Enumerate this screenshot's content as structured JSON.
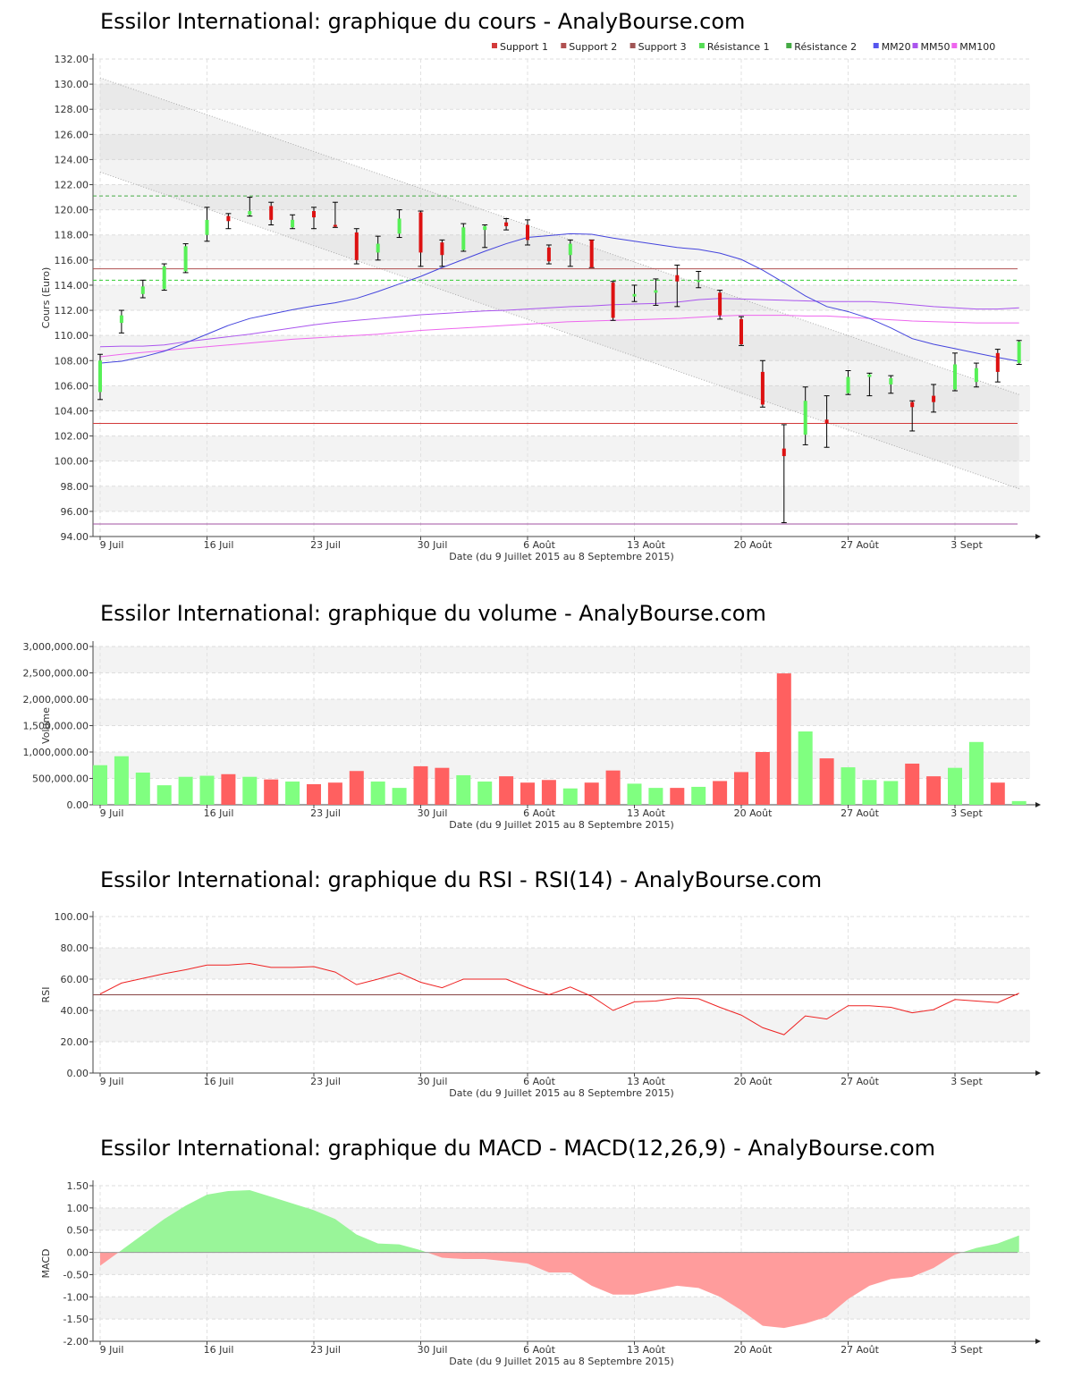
{
  "colors": {
    "up": "#57f057",
    "down": "#dd1111",
    "vol_up": "#80ff80",
    "vol_down": "#ff6060",
    "support1": "#d33a3a",
    "support2": "#b05050",
    "support3": "#a050a0",
    "resistance1": "#33cc33",
    "resistance2": "#44aa44",
    "mm20": "#4444dd",
    "mm50": "#aa55ee",
    "mm100": "#ee66ee",
    "rsi_line": "#ee2222",
    "macd_pos": "#99f599",
    "macd_neg": "#ff9c9c"
  },
  "xaxis": {
    "ticks": [
      {
        "i": 0,
        "label": "9 Juil"
      },
      {
        "i": 5,
        "label": "16 Juil"
      },
      {
        "i": 10,
        "label": "23 Juil"
      },
      {
        "i": 15,
        "label": "30 Juil"
      },
      {
        "i": 20,
        "label": "6 Août"
      },
      {
        "i": 25,
        "label": "13 Août"
      },
      {
        "i": 30,
        "label": "20 Août"
      },
      {
        "i": 35,
        "label": "27 Août"
      },
      {
        "i": 40,
        "label": "3 Sept"
      }
    ],
    "label": "Date (du 9 Juillet 2015 au 8 Septembre 2015)"
  },
  "charts": {
    "price": {
      "title": "Essilor International: graphique du cours - AnalyBourse.com",
      "ylabel": "Cours (Euro)"
    },
    "volume": {
      "title": "Essilor International: graphique du volume - AnalyBourse.com",
      "ylabel": "Volume"
    },
    "rsi": {
      "title": "Essilor International: graphique du RSI - RSI(14) - AnalyBourse.com",
      "ylabel": "RSI"
    },
    "macd": {
      "title": "Essilor International: graphique du MACD - MACD(12,26,9) - AnalyBourse.com",
      "ylabel": "MACD"
    }
  },
  "legend": [
    {
      "label": "Support 1",
      "color": "#d33a3a"
    },
    {
      "label": "Support 2",
      "color": "#b05050"
    },
    {
      "label": "Support 3",
      "color": "#a05555"
    },
    {
      "label": "Résistance 1",
      "color": "#55dd55"
    },
    {
      "label": "Résistance 2",
      "color": "#44aa44"
    },
    {
      "label": "MM20",
      "color": "#5555ee"
    },
    {
      "label": "MM50",
      "color": "#aa55ee"
    },
    {
      "label": "MM100",
      "color": "#ee66ee"
    }
  ],
  "chart_data": [
    {
      "type": "candlestick",
      "title": "Essilor International: graphique du cours - AnalyBourse.com",
      "xlabel": "Date (du 9 Juillet 2015 au 8 Septembre 2015)",
      "ylabel": "Cours (Euro)",
      "ylim": [
        94,
        132
      ],
      "yticks": [
        "94.00",
        "96.00",
        "98.00",
        "100.00",
        "102.00",
        "104.00",
        "106.00",
        "108.00",
        "110.00",
        "112.00",
        "114.00",
        "116.00",
        "118.00",
        "120.00",
        "122.00",
        "124.00",
        "126.00",
        "128.00",
        "130.00",
        "132.00"
      ],
      "candles": [
        {
          "o": 105.5,
          "h": 108.5,
          "l": 104.9,
          "c": 108.0
        },
        {
          "o": 111.0,
          "h": 112.0,
          "l": 110.2,
          "c": 111.6
        },
        {
          "o": 113.3,
          "h": 114.4,
          "l": 113.0,
          "c": 113.9
        },
        {
          "o": 113.7,
          "h": 115.7,
          "l": 113.6,
          "c": 115.5
        },
        {
          "o": 115.1,
          "h": 117.3,
          "l": 115.0,
          "c": 117.1
        },
        {
          "o": 118.0,
          "h": 120.2,
          "l": 117.5,
          "c": 119.2
        },
        {
          "o": 119.5,
          "h": 119.7,
          "l": 118.5,
          "c": 119.1
        },
        {
          "o": 119.6,
          "h": 121.0,
          "l": 119.5,
          "c": 119.9
        },
        {
          "o": 120.3,
          "h": 120.6,
          "l": 118.8,
          "c": 119.2
        },
        {
          "o": 118.6,
          "h": 119.6,
          "l": 118.5,
          "c": 119.2
        },
        {
          "o": 119.9,
          "h": 120.2,
          "l": 118.5,
          "c": 119.4
        },
        {
          "o": 118.8,
          "h": 120.6,
          "l": 118.6,
          "c": 118.7
        },
        {
          "o": 118.2,
          "h": 118.5,
          "l": 115.7,
          "c": 116.0
        },
        {
          "o": 116.6,
          "h": 117.9,
          "l": 116.0,
          "c": 117.3
        },
        {
          "o": 118.1,
          "h": 120.0,
          "l": 117.8,
          "c": 119.3
        },
        {
          "o": 119.8,
          "h": 119.9,
          "l": 115.5,
          "c": 116.6
        },
        {
          "o": 117.4,
          "h": 117.6,
          "l": 115.5,
          "c": 116.4
        },
        {
          "o": 116.8,
          "h": 118.9,
          "l": 116.7,
          "c": 118.6
        },
        {
          "o": 118.4,
          "h": 118.8,
          "l": 117.0,
          "c": 118.7
        },
        {
          "o": 119.0,
          "h": 119.3,
          "l": 118.4,
          "c": 118.7
        },
        {
          "o": 118.8,
          "h": 119.2,
          "l": 117.2,
          "c": 117.6
        },
        {
          "o": 117.0,
          "h": 117.2,
          "l": 115.7,
          "c": 115.9
        },
        {
          "o": 116.4,
          "h": 117.6,
          "l": 115.5,
          "c": 117.3
        },
        {
          "o": 117.6,
          "h": 117.6,
          "l": 115.4,
          "c": 115.4
        },
        {
          "o": 114.2,
          "h": 114.3,
          "l": 111.2,
          "c": 111.4
        },
        {
          "o": 113.1,
          "h": 114.0,
          "l": 112.7,
          "c": 113.3
        },
        {
          "o": 113.4,
          "h": 114.5,
          "l": 112.4,
          "c": 113.6
        },
        {
          "o": 114.8,
          "h": 115.6,
          "l": 112.3,
          "c": 114.3
        },
        {
          "o": 114.3,
          "h": 115.1,
          "l": 113.8,
          "c": 114.4
        },
        {
          "o": 113.4,
          "h": 113.6,
          "l": 111.3,
          "c": 111.6
        },
        {
          "o": 111.3,
          "h": 111.5,
          "l": 109.2,
          "c": 109.3
        },
        {
          "o": 107.1,
          "h": 108.0,
          "l": 104.3,
          "c": 104.5
        },
        {
          "o": 101.0,
          "h": 102.9,
          "l": 95.1,
          "c": 100.4
        },
        {
          "o": 102.1,
          "h": 105.9,
          "l": 101.3,
          "c": 104.8
        },
        {
          "o": 103.3,
          "h": 105.2,
          "l": 101.1,
          "c": 103.0
        },
        {
          "o": 105.4,
          "h": 107.2,
          "l": 105.3,
          "c": 106.7
        },
        {
          "o": 106.7,
          "h": 107.0,
          "l": 105.2,
          "c": 106.9
        },
        {
          "o": 106.1,
          "h": 106.8,
          "l": 105.4,
          "c": 106.6
        },
        {
          "o": 104.7,
          "h": 104.8,
          "l": 102.4,
          "c": 104.3
        },
        {
          "o": 105.2,
          "h": 106.1,
          "l": 103.9,
          "c": 104.7
        },
        {
          "o": 105.7,
          "h": 108.6,
          "l": 105.6,
          "c": 107.7
        },
        {
          "o": 106.3,
          "h": 107.8,
          "l": 105.9,
          "c": 107.4
        },
        {
          "o": 108.6,
          "h": 108.9,
          "l": 106.3,
          "c": 107.1
        },
        {
          "o": 107.8,
          "h": 109.6,
          "l": 107.7,
          "c": 109.5
        }
      ],
      "support1": 103.0,
      "support2": 115.3,
      "support3": 95.0,
      "resistance1": 114.4,
      "resistance2": 121.1,
      "channel_upper": [
        130.5,
        105.3
      ],
      "channel_lower": [
        123.0,
        97.8
      ],
      "mm20": [
        107.8,
        107.95,
        108.3,
        108.75,
        109.4,
        110.1,
        110.8,
        111.35,
        111.7,
        112.05,
        112.35,
        112.6,
        112.95,
        113.5,
        114.1,
        114.7,
        115.4,
        116.05,
        116.7,
        117.3,
        117.8,
        117.95,
        118.1,
        118.05,
        117.75,
        117.5,
        117.25,
        117.0,
        116.85,
        116.55,
        116.05,
        115.2,
        114.2,
        113.15,
        112.3,
        111.9,
        111.35,
        110.6,
        109.75,
        109.3,
        108.95,
        108.6,
        108.25,
        107.95
      ],
      "mm50": [
        109.1,
        109.15,
        109.15,
        109.25,
        109.5,
        109.7,
        109.9,
        110.1,
        110.35,
        110.6,
        110.85,
        111.05,
        111.2,
        111.35,
        111.5,
        111.65,
        111.75,
        111.85,
        111.95,
        112.0,
        112.1,
        112.2,
        112.3,
        112.35,
        112.45,
        112.5,
        112.55,
        112.65,
        112.85,
        112.95,
        112.9,
        112.85,
        112.8,
        112.75,
        112.7,
        112.7,
        112.7,
        112.6,
        112.45,
        112.3,
        112.2,
        112.1,
        112.1,
        112.2
      ],
      "mm100": [
        108.3,
        108.5,
        108.65,
        108.8,
        108.95,
        109.1,
        109.25,
        109.4,
        109.55,
        109.7,
        109.8,
        109.9,
        110.0,
        110.1,
        110.25,
        110.4,
        110.5,
        110.6,
        110.7,
        110.8,
        110.9,
        111.0,
        111.1,
        111.15,
        111.2,
        111.25,
        111.3,
        111.35,
        111.45,
        111.55,
        111.6,
        111.6,
        111.6,
        111.55,
        111.55,
        111.45,
        111.35,
        111.25,
        111.15,
        111.1,
        111.05,
        111.0,
        111.0,
        111.0
      ]
    },
    {
      "type": "bar",
      "title": "Essilor International: graphique du volume - AnalyBourse.com",
      "xlabel": "Date (du 9 Juillet 2015 au 8 Septembre 2015)",
      "ylabel": "Volume",
      "ylim": [
        0,
        3000000
      ],
      "yticks": [
        "0.00",
        "500,000.00",
        "1,000,000.00",
        "1,500,000.00",
        "2,000,000.00",
        "2,500,000.00",
        "3,000,000.00"
      ],
      "values": [
        750000,
        920000,
        610000,
        370000,
        530000,
        550000,
        580000,
        530000,
        480000,
        440000,
        390000,
        420000,
        640000,
        440000,
        320000,
        730000,
        700000,
        560000,
        440000,
        540000,
        420000,
        470000,
        310000,
        420000,
        650000,
        400000,
        320000,
        320000,
        340000,
        450000,
        620000,
        1000000,
        2490000,
        1390000,
        880000,
        710000,
        470000,
        450000,
        780000,
        540000,
        700000,
        1190000,
        420000,
        70000
      ],
      "colors_up_down": "up,up,up,up,up,up,down,up,down,up,down,down,down,up,up,down,down,up,up,down,down,down,up,down,down,up,up,down,up,down,down,down,down,up,down,up,up,up,down,down,up,up,down,up"
    },
    {
      "type": "line",
      "title": "Essilor International: graphique du RSI - RSI(14) - AnalyBourse.com",
      "xlabel": "Date (du 9 Juillet 2015 au 8 Septembre 2015)",
      "ylabel": "RSI",
      "ylim": [
        0,
        100
      ],
      "yticks": [
        "0.00",
        "20.00",
        "40.00",
        "60.00",
        "80.00",
        "100.00"
      ],
      "reference": 50,
      "values": [
        50.5,
        57.5,
        60.5,
        63.5,
        66.0,
        69.0,
        69.0,
        70.0,
        67.5,
        67.5,
        68.0,
        64.5,
        56.5,
        60.0,
        64.0,
        58.0,
        54.5,
        60.0,
        60.0,
        60.0,
        54.5,
        50.0,
        55.0,
        49.0,
        40.0,
        45.5,
        46.0,
        48.0,
        47.5,
        42.0,
        37.0,
        29.0,
        24.5,
        36.5,
        34.5,
        43.0,
        43.0,
        42.0,
        38.5,
        40.5,
        47.0,
        46.0,
        45.0,
        51.0
      ]
    },
    {
      "type": "area",
      "title": "Essilor International: graphique du MACD - MACD(12,26,9) - AnalyBourse.com",
      "xlabel": "Date (du 9 Juillet 2015 au 8 Septembre 2015)",
      "ylabel": "MACD",
      "ylim": [
        -2,
        1.5
      ],
      "yticks": [
        "-2.00",
        "-1.50",
        "-1.00",
        "-0.50",
        "0.00",
        "0.50",
        "1.00",
        "1.50"
      ],
      "values": [
        -0.3,
        0.05,
        0.4,
        0.75,
        1.05,
        1.3,
        1.38,
        1.4,
        1.25,
        1.1,
        0.95,
        0.75,
        0.4,
        0.2,
        0.18,
        0.05,
        -0.12,
        -0.15,
        -0.15,
        -0.2,
        -0.25,
        -0.45,
        -0.45,
        -0.75,
        -0.95,
        -0.95,
        -0.85,
        -0.75,
        -0.8,
        -1.0,
        -1.3,
        -1.65,
        -1.7,
        -1.6,
        -1.45,
        -1.05,
        -0.75,
        -0.6,
        -0.55,
        -0.35,
        -0.05,
        0.1,
        0.2,
        0.38
      ]
    }
  ]
}
